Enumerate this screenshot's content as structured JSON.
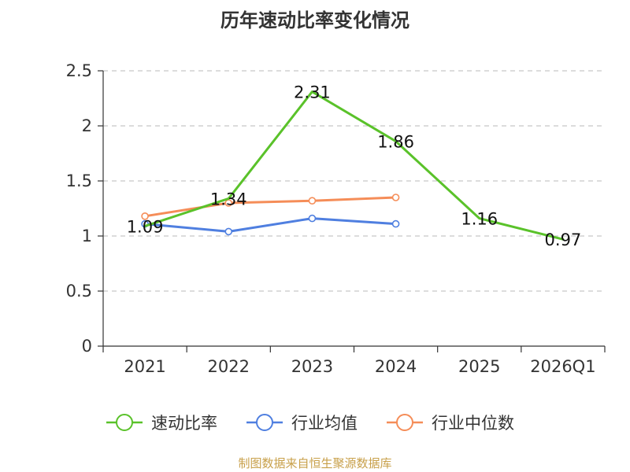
{
  "title": "历年速动比率变化情况",
  "footer": "制图数据来自恒生聚源数据库",
  "chart_data": {
    "type": "line",
    "title": "历年速动比率变化情况",
    "categories": [
      "2021",
      "2022",
      "2023",
      "2024",
      "2025",
      "2026Q1"
    ],
    "ylim": [
      0,
      2.5
    ],
    "yticks": [
      "0",
      "0.5",
      "1",
      "1.5",
      "2",
      "2.5"
    ],
    "grid": true,
    "legend_position": "bottom",
    "series": [
      {
        "name": "速动比率",
        "color": "#5ac22a",
        "values": [
          1.09,
          1.34,
          2.31,
          1.86,
          1.16,
          0.97
        ],
        "labels": [
          "1.09",
          "1.34",
          "2.31",
          "1.86",
          "1.16",
          "0.97"
        ]
      },
      {
        "name": "行业均值",
        "color": "#4f7fe0",
        "values": [
          1.11,
          1.04,
          1.16,
          1.11,
          null,
          null
        ],
        "labels": null
      },
      {
        "name": "行业中位数",
        "color": "#f58d58",
        "values": [
          1.18,
          1.3,
          1.32,
          1.35,
          null,
          null
        ],
        "labels": null
      }
    ]
  }
}
